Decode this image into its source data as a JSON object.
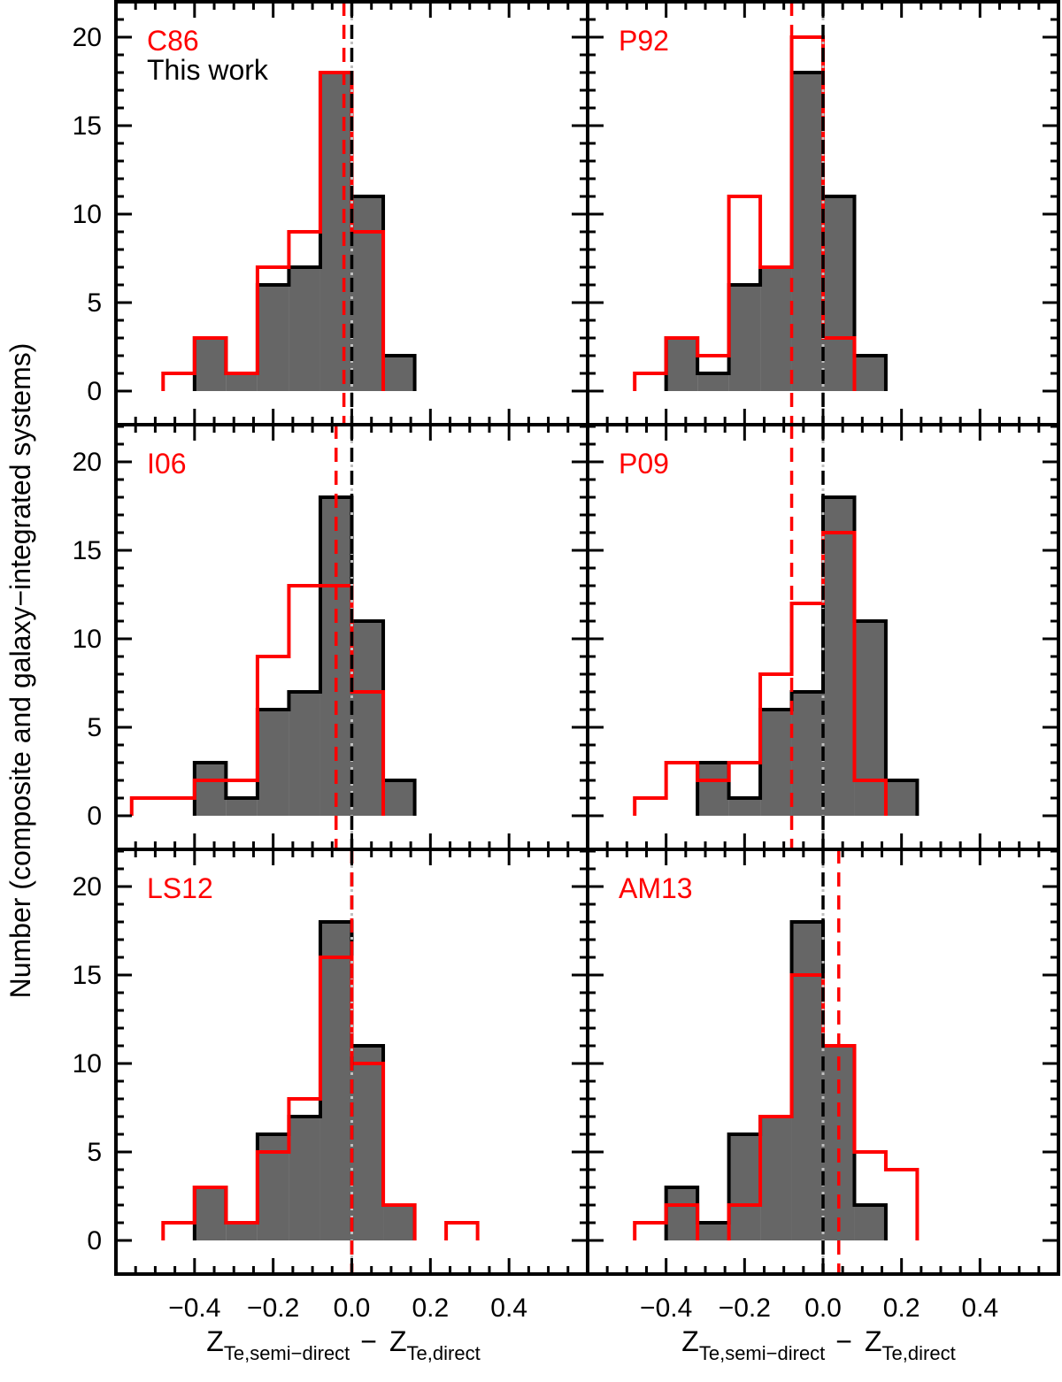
{
  "ylabel": "Number (composite and galaxy−integrated systems)",
  "xlabel": {
    "main": "Z",
    "sub1": "Te,semi−direct",
    "minus": "−",
    "sub2": "Te,direct"
  },
  "legend_this_work": "This work",
  "colors": {
    "this_work_fill": "#666666",
    "this_work_line": "#000000",
    "comparison": "#ff0000",
    "zero_line": "#c0c0c0"
  },
  "chart_data": [
    {
      "type": "bar",
      "panel": "top-left",
      "label": "C86",
      "label_color": "#ff0000",
      "xlim": [
        -0.6,
        0.6
      ],
      "ylim": [
        0,
        24
      ],
      "bin_edges_start": -0.48,
      "bin_width": 0.08,
      "this_work": [
        0,
        3,
        1,
        6,
        7,
        18,
        11,
        2,
        0,
        0,
        0
      ],
      "comparison": [
        1,
        3,
        1,
        7,
        9,
        18,
        9,
        0,
        0,
        0,
        0
      ],
      "this_work_median": 0.0,
      "comparison_median": -0.02,
      "xticks": [
        -0.4,
        -0.2,
        0.0,
        0.2,
        0.4
      ],
      "yticks": [
        0,
        5,
        10,
        15,
        20
      ]
    },
    {
      "type": "bar",
      "panel": "top-right",
      "label": "P92",
      "label_color": "#ff0000",
      "xlim": [
        -0.6,
        0.6
      ],
      "ylim": [
        0,
        24
      ],
      "bin_edges_start": -0.48,
      "bin_width": 0.08,
      "this_work": [
        0,
        3,
        1,
        6,
        7,
        18,
        11,
        2,
        0,
        0,
        0
      ],
      "comparison": [
        1,
        3,
        2,
        11,
        7,
        20,
        3,
        0,
        0,
        0,
        0
      ],
      "this_work_median": 0.0,
      "comparison_median": -0.08,
      "xticks": [
        -0.4,
        -0.2,
        0.0,
        0.2,
        0.4
      ],
      "yticks": [
        0,
        5,
        10,
        15,
        20
      ]
    },
    {
      "type": "bar",
      "panel": "middle-left",
      "label": "I06",
      "label_color": "#ff0000",
      "xlim": [
        -0.6,
        0.6
      ],
      "ylim": [
        0,
        24
      ],
      "bin_start": -0.56,
      "bin_width": 0.08,
      "this_work": [
        0,
        0,
        3,
        1,
        6,
        7,
        18,
        11,
        2,
        0,
        0,
        0
      ],
      "comparison": [
        1,
        1,
        2,
        2,
        9,
        13,
        13,
        7,
        0,
        0,
        0,
        0
      ],
      "this_work_median": 0.0,
      "comparison_median": -0.04,
      "xticks": [
        -0.4,
        -0.2,
        0.0,
        0.2,
        0.4
      ],
      "yticks": [
        0,
        5,
        10,
        15,
        20
      ]
    },
    {
      "type": "bar",
      "panel": "middle-right",
      "label": "P09",
      "label_color": "#ff0000",
      "xlim": [
        -0.6,
        0.6
      ],
      "ylim": [
        0,
        24
      ],
      "bin_edges_start": -0.48,
      "bin_width": 0.08,
      "this_work": [
        0,
        0,
        3,
        1,
        6,
        7,
        18,
        11,
        2,
        0,
        0
      ],
      "comparison": [
        1,
        3,
        2,
        3,
        8,
        12,
        16,
        2,
        0,
        0,
        0
      ],
      "this_work_median": 0.0,
      "comparison_median": -0.08,
      "xticks": [
        -0.4,
        -0.2,
        0.0,
        0.2,
        0.4
      ],
      "yticks": [
        0,
        5,
        10,
        15,
        20
      ]
    },
    {
      "type": "bar",
      "panel": "bottom-left",
      "label": "LS12",
      "label_color": "#ff0000",
      "xlim": [
        -0.6,
        0.6
      ],
      "ylim": [
        0,
        24
      ],
      "bin_edges_start": -0.48,
      "bin_width": 0.08,
      "this_work": [
        0,
        3,
        1,
        6,
        7,
        18,
        11,
        2,
        0,
        0
      ],
      "comparison": [
        1,
        3,
        1,
        5,
        8,
        16,
        10,
        2,
        0,
        1
      ],
      "this_work_median": 0.0,
      "comparison_median": 0.0,
      "xticks": [
        -0.4,
        -0.2,
        0.0,
        0.2,
        0.4
      ],
      "yticks": [
        0,
        5,
        10,
        15,
        20
      ]
    },
    {
      "type": "bar",
      "panel": "bottom-right",
      "label": "AM13",
      "label_color": "#ff0000",
      "xlim": [
        -0.6,
        0.6
      ],
      "ylim": [
        0,
        24
      ],
      "bin_edges_start": -0.48,
      "bin_width": 0.08,
      "this_work": [
        0,
        3,
        1,
        6,
        7,
        18,
        11,
        2,
        0,
        0
      ],
      "comparison": [
        1,
        2,
        0,
        2,
        7,
        15,
        11,
        5,
        4,
        0
      ],
      "this_work_median": 0.0,
      "comparison_median": 0.04,
      "xticks": [
        -0.4,
        -0.2,
        0.0,
        0.2,
        0.4
      ],
      "yticks": [
        0,
        5,
        10,
        15,
        20
      ]
    }
  ]
}
